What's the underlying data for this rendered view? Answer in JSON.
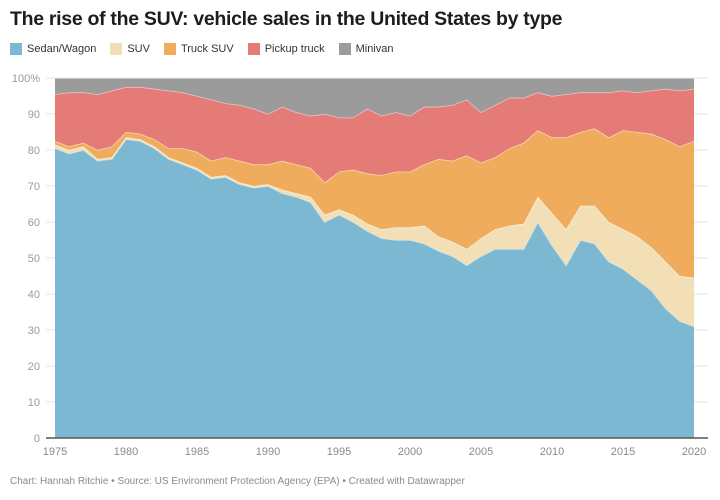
{
  "title": "The rise of the SUV: vehicle sales in the United States by type",
  "footer": "Chart: Hannah Ritchie • Source: US Environment Protection Agency (EPA) • Created with Datawrapper",
  "legend": [
    {
      "label": "Sedan/Wagon",
      "color": "#7db8d2"
    },
    {
      "label": "SUV",
      "color": "#f3dfb5"
    },
    {
      "label": "Truck SUV",
      "color": "#efac5c"
    },
    {
      "label": "Pickup truck",
      "color": "#e47b77"
    },
    {
      "label": "Minivan",
      "color": "#9b9b9b"
    }
  ],
  "chart_data": {
    "type": "area",
    "stacked": true,
    "title": "The rise of the SUV: vehicle sales in the United States by type",
    "xlabel": "",
    "ylabel": "",
    "ylim": [
      0,
      100
    ],
    "xlim": [
      1975,
      2020
    ],
    "yticks": [
      0,
      10,
      20,
      30,
      40,
      50,
      60,
      70,
      80,
      90,
      100
    ],
    "ytick_labels": [
      "0",
      "10",
      "20",
      "30",
      "40",
      "50",
      "60",
      "70",
      "80",
      "90",
      "100%"
    ],
    "xticks": [
      1975,
      1980,
      1985,
      1990,
      1995,
      2000,
      2005,
      2010,
      2015,
      2020
    ],
    "grid": true,
    "legend_position": "top-left",
    "x": [
      1975,
      1976,
      1977,
      1978,
      1979,
      1980,
      1981,
      1982,
      1983,
      1984,
      1985,
      1986,
      1987,
      1988,
      1989,
      1990,
      1991,
      1992,
      1993,
      1994,
      1995,
      1996,
      1997,
      1998,
      1999,
      2000,
      2001,
      2002,
      2003,
      2004,
      2005,
      2006,
      2007,
      2008,
      2009,
      2010,
      2011,
      2012,
      2013,
      2014,
      2015,
      2016,
      2017,
      2018,
      2019,
      2020
    ],
    "series": [
      {
        "name": "Sedan/Wagon",
        "color": "#7db8d2",
        "values": [
          80.5,
          79,
          80,
          77,
          77.5,
          83,
          82.5,
          80.5,
          77.5,
          76,
          74.5,
          72,
          72.5,
          70.5,
          69.5,
          70,
          68,
          67,
          65.5,
          60,
          62,
          60,
          57.5,
          55.5,
          55,
          55,
          54,
          52,
          50.5,
          48,
          50.5,
          52.5,
          52.5,
          52.5,
          60,
          53.5,
          48,
          55,
          54,
          49,
          47,
          44,
          41,
          36,
          32.5,
          31
        ]
      },
      {
        "name": "SUV",
        "color": "#f3dfb5",
        "values": [
          1,
          1,
          1,
          0.5,
          0.5,
          0.5,
          0.5,
          0.5,
          0.5,
          0.5,
          0.5,
          0.5,
          0.5,
          0.5,
          0.5,
          0.5,
          1,
          1,
          1.5,
          2,
          1.5,
          2,
          2,
          2.5,
          3.5,
          3.5,
          5,
          4,
          4,
          4.5,
          5,
          5.5,
          6.5,
          7,
          7,
          9,
          10,
          9.5,
          10.5,
          11,
          11,
          12,
          12,
          13,
          12.5,
          13.5
        ]
      },
      {
        "name": "Truck SUV",
        "color": "#efac5c",
        "values": [
          1,
          1,
          1,
          2.5,
          3,
          1.5,
          1.5,
          2,
          2.5,
          4,
          4.5,
          4.5,
          5,
          6,
          6,
          5.5,
          8,
          8,
          8,
          9,
          10.5,
          12.5,
          14,
          15,
          15.5,
          15.5,
          17,
          21.5,
          22.5,
          26,
          21,
          20,
          21.5,
          22.5,
          18.5,
          21,
          25.5,
          20.5,
          21.5,
          23.5,
          27.5,
          29,
          31.5,
          34,
          36,
          38
        ]
      },
      {
        "name": "Pickup truck",
        "color": "#e47b77",
        "values": [
          13,
          15,
          14,
          15.5,
          15.5,
          12.5,
          13,
          14,
          16,
          15.5,
          15.5,
          17,
          15,
          15.5,
          15.5,
          14,
          15,
          14.5,
          14.5,
          19,
          15,
          14.5,
          18,
          16.5,
          16.5,
          15.5,
          16,
          14.5,
          15.5,
          15.5,
          14,
          14.5,
          14,
          12.5,
          10.5,
          11.5,
          12,
          11,
          10,
          12.5,
          11,
          11,
          12,
          14,
          15.5,
          14.5
        ]
      },
      {
        "name": "Minivan",
        "color": "#9b9b9b",
        "values": [
          4.5,
          4,
          4,
          4.5,
          3.5,
          2.5,
          2.5,
          3,
          3.5,
          4,
          5,
          6,
          7,
          7.5,
          8.5,
          10,
          8,
          9.5,
          10.5,
          10,
          11,
          11,
          8.5,
          10.5,
          9.5,
          10.5,
          8,
          8,
          7.5,
          6,
          9.5,
          7.5,
          5.5,
          5.5,
          4,
          5,
          4.5,
          4,
          4,
          4,
          3.5,
          4,
          3.5,
          3,
          3.5,
          3
        ]
      }
    ]
  }
}
